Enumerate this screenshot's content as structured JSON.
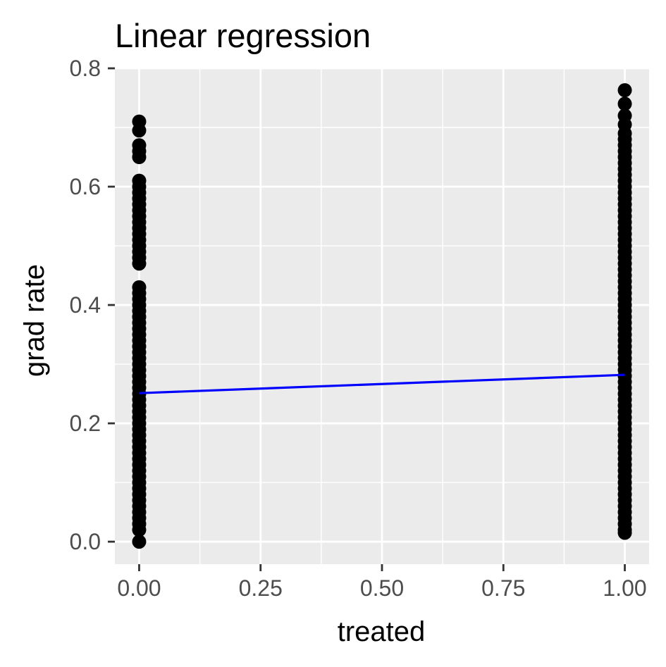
{
  "chart_data": {
    "type": "scatter",
    "title": "Linear regression",
    "xlabel": "treated",
    "ylabel": "grad rate",
    "xlim": [
      -0.05,
      1.05
    ],
    "ylim": [
      -0.038,
      0.8
    ],
    "x_ticks": [
      0,
      0.25,
      0.5,
      0.75,
      1
    ],
    "x_tick_labels": [
      "0.00",
      "0.25",
      "0.50",
      "0.75",
      "1.00"
    ],
    "y_ticks": [
      0,
      0.2,
      0.4,
      0.6,
      0.8
    ],
    "y_tick_labels": [
      "0.0",
      "0.2",
      "0.4",
      "0.6",
      "0.8"
    ],
    "grid": true,
    "colors": {
      "panel": "#ebebeb",
      "grid": "#ffffff",
      "points": "#000000",
      "regression_line": "#0000ff"
    },
    "series": [
      {
        "kind": "points",
        "x": 0,
        "y": [
          0.0,
          0.02,
          0.03,
          0.04,
          0.05,
          0.06,
          0.07,
          0.08,
          0.09,
          0.1,
          0.11,
          0.12,
          0.13,
          0.14,
          0.15,
          0.16,
          0.17,
          0.18,
          0.19,
          0.2,
          0.21,
          0.22,
          0.23,
          0.24,
          0.25,
          0.26,
          0.27,
          0.28,
          0.29,
          0.3,
          0.31,
          0.32,
          0.33,
          0.34,
          0.35,
          0.36,
          0.37,
          0.38,
          0.39,
          0.4,
          0.41,
          0.42,
          0.43,
          0.47,
          0.48,
          0.49,
          0.5,
          0.51,
          0.52,
          0.53,
          0.54,
          0.55,
          0.56,
          0.57,
          0.58,
          0.59,
          0.6,
          0.61,
          0.65,
          0.66,
          0.67,
          0.695,
          0.71
        ]
      },
      {
        "kind": "points",
        "x": 1,
        "y": [
          0.015,
          0.02,
          0.03,
          0.04,
          0.05,
          0.06,
          0.07,
          0.08,
          0.09,
          0.1,
          0.11,
          0.12,
          0.13,
          0.14,
          0.15,
          0.16,
          0.17,
          0.18,
          0.19,
          0.2,
          0.21,
          0.22,
          0.23,
          0.24,
          0.25,
          0.26,
          0.27,
          0.28,
          0.29,
          0.3,
          0.31,
          0.32,
          0.33,
          0.34,
          0.35,
          0.36,
          0.37,
          0.38,
          0.39,
          0.4,
          0.41,
          0.42,
          0.43,
          0.44,
          0.45,
          0.46,
          0.47,
          0.48,
          0.49,
          0.5,
          0.51,
          0.52,
          0.53,
          0.54,
          0.55,
          0.56,
          0.57,
          0.58,
          0.59,
          0.6,
          0.61,
          0.62,
          0.63,
          0.64,
          0.65,
          0.66,
          0.67,
          0.68,
          0.69,
          0.705,
          0.72,
          0.74,
          0.763
        ]
      },
      {
        "kind": "regression-line",
        "x": [
          0,
          1
        ],
        "y": [
          0.251,
          0.282
        ]
      }
    ]
  }
}
